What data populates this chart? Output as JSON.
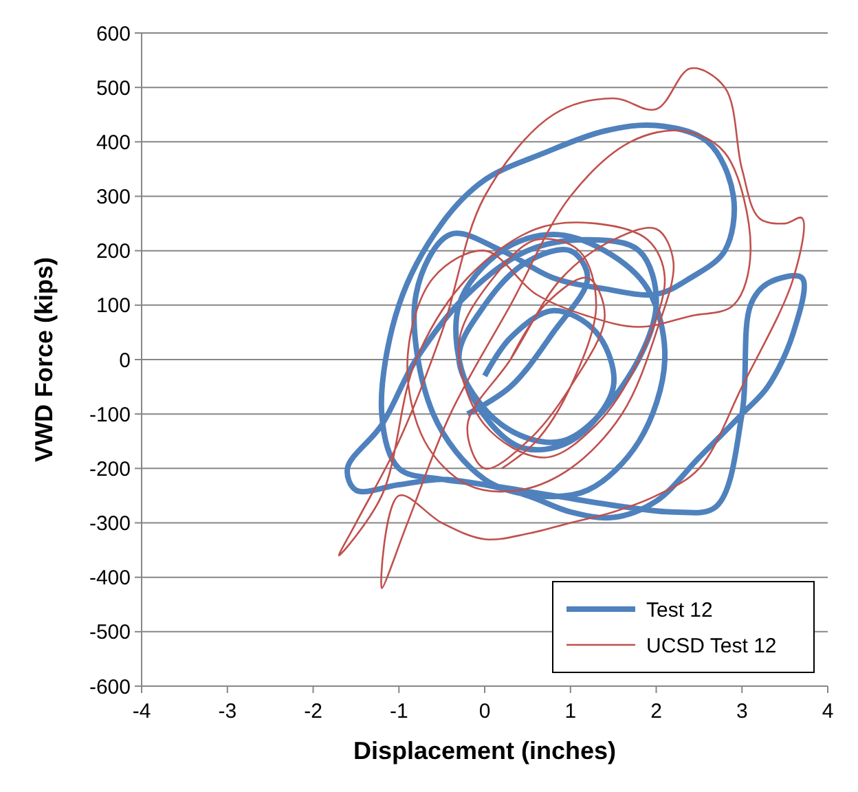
{
  "chart_data": {
    "type": "line",
    "xlabel": "Displacement (inches)",
    "ylabel": "VWD Force (kips)",
    "xlim": [
      -4,
      4
    ],
    "xticks": [
      -4,
      -3,
      -2,
      -1,
      0,
      1,
      2,
      3,
      4
    ],
    "ylim": [
      -600,
      600
    ],
    "yticks": [
      -600,
      -500,
      -400,
      -300,
      -200,
      -100,
      0,
      100,
      200,
      300,
      400,
      500,
      600
    ],
    "grid": "y",
    "legend": "bottom right",
    "marker": "none",
    "line_style": "solid",
    "series": [
      {
        "name": "Test 12",
        "color": "#4f81bd",
        "x": [
          -0.2,
          0.3,
          0.8,
          1.2,
          1.0,
          0.5,
          0.0,
          -0.3,
          0.2,
          0.9,
          1.6,
          2.0,
          1.8,
          1.2,
          0.5,
          -0.2,
          -0.8,
          -1.2,
          -1.6,
          -1.5,
          -1.0,
          -0.5,
          0.0,
          0.8,
          1.6,
          2.2,
          2.7,
          3.0,
          3.1,
          3.3,
          3.7,
          3.6,
          3.3,
          3.0,
          2.5,
          2.0,
          1.5,
          1.0,
          0.5,
          0.0,
          -0.5,
          -1.0,
          -1.2,
          -1.0,
          -0.5,
          0.0,
          0.7,
          1.4,
          2.0,
          2.6,
          2.9,
          2.8,
          2.4,
          2.0,
          1.4,
          0.8,
          0.2,
          -0.4,
          -0.8,
          -0.6,
          0.0,
          0.6,
          1.2,
          1.8,
          2.1,
          1.9,
          1.4,
          0.8,
          0.2,
          -0.3,
          -0.2,
          0.4,
          1.0,
          1.5,
          1.3,
          0.8,
          0.3,
          0.0
        ],
        "values": [
          -100,
          -50,
          50,
          150,
          200,
          180,
          100,
          0,
          -120,
          -150,
          -50,
          100,
          200,
          220,
          200,
          120,
          0,
          -120,
          -200,
          -240,
          -230,
          -220,
          -230,
          -250,
          -270,
          -280,
          -270,
          -100,
          100,
          140,
          150,
          50,
          -50,
          -100,
          -180,
          -260,
          -290,
          -280,
          -250,
          -230,
          -220,
          -200,
          -100,
          100,
          250,
          330,
          380,
          420,
          430,
          400,
          300,
          200,
          150,
          120,
          130,
          150,
          200,
          230,
          120,
          -100,
          -220,
          -250,
          -240,
          -150,
          0,
          130,
          200,
          230,
          200,
          100,
          -50,
          -160,
          -150,
          -50,
          50,
          90,
          40,
          -30
        ]
      },
      {
        "name": "UCSD Test 12",
        "color": "#c0504d",
        "x": [
          0.2,
          0.6,
          1.0,
          1.3,
          1.1,
          0.6,
          0.1,
          -0.3,
          0.0,
          0.7,
          1.3,
          1.8,
          2.1,
          1.9,
          1.3,
          0.6,
          -0.2,
          -0.8,
          -1.2,
          -1.7,
          -1.5,
          -1.0,
          -0.5,
          0.0,
          0.8,
          1.5,
          2.0,
          2.4,
          2.8,
          3.0,
          3.2,
          3.5,
          3.7,
          3.6,
          3.0,
          2.5,
          2.0,
          1.5,
          1.0,
          0.5,
          0.0,
          -0.5,
          -1.0,
          -1.2,
          -0.9,
          -0.4,
          0.3,
          1.0,
          1.7,
          2.3,
          2.8,
          3.1,
          2.9,
          2.4,
          1.8,
          1.2,
          0.6,
          0.0,
          -0.6,
          -0.9,
          -0.7,
          -0.2,
          0.4,
          1.0,
          1.6,
          2.0,
          2.2,
          2.0,
          1.5,
          0.9,
          0.3,
          -0.2,
          0.0,
          0.5,
          1.0,
          1.4,
          1.2,
          0.7,
          0.3
        ],
        "values": [
          -200,
          -150,
          -50,
          100,
          200,
          220,
          150,
          30,
          -120,
          -180,
          -120,
          0,
          150,
          220,
          250,
          240,
          150,
          0,
          -250,
          -360,
          -300,
          -150,
          50,
          300,
          450,
          480,
          460,
          535,
          500,
          350,
          260,
          250,
          260,
          150,
          -50,
          -200,
          -250,
          -280,
          -300,
          -320,
          -330,
          -300,
          -250,
          -420,
          -300,
          -100,
          100,
          300,
          400,
          420,
          380,
          200,
          100,
          80,
          60,
          80,
          120,
          200,
          150,
          0,
          -150,
          -230,
          -240,
          -200,
          -100,
          50,
          180,
          240,
          220,
          150,
          0,
          -120,
          -200,
          -150,
          -50,
          80,
          150,
          100,
          0
        ]
      }
    ]
  }
}
